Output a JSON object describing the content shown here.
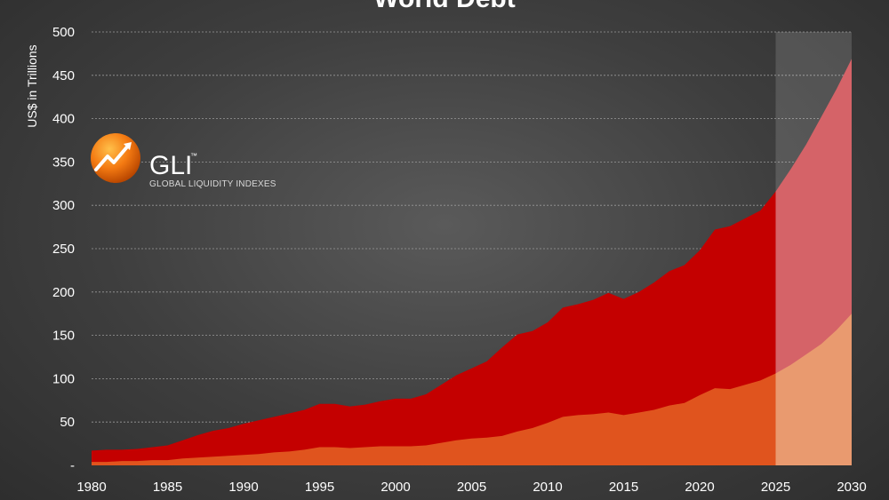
{
  "chart_data": {
    "type": "area",
    "title": "World Debt",
    "ylabel": "US$ in Trillions",
    "xlabel": "",
    "xlim": [
      1980,
      2030
    ],
    "ylim": [
      0,
      500
    ],
    "x_ticks": [
      "1980",
      "1985",
      "1990",
      "1995",
      "2000",
      "2005",
      "2010",
      "2015",
      "2020",
      "2025",
      "2030"
    ],
    "y_ticks": [
      "-",
      "50",
      "100",
      "150",
      "200",
      "250",
      "300",
      "350",
      "400",
      "450",
      "500"
    ],
    "grid": true,
    "forecast_start": 2025,
    "colors": {
      "total": "#c40000",
      "lower": "#e0541e",
      "forecast_total": "#cf4a50",
      "forecast_lower": "#e68a58",
      "forecast_shade": "#ffffff"
    },
    "series": [
      {
        "key": "total",
        "x": [
          1980,
          1981,
          1982,
          1983,
          1984,
          1985,
          1986,
          1987,
          1988,
          1989,
          1990,
          1991,
          1992,
          1993,
          1994,
          1995,
          1996,
          1997,
          1998,
          1999,
          2000,
          2001,
          2002,
          2003,
          2004,
          2005,
          2006,
          2007,
          2008,
          2009,
          2010,
          2011,
          2012,
          2013,
          2014,
          2015,
          2016,
          2017,
          2018,
          2019,
          2020,
          2021,
          2022,
          2023,
          2024,
          2025,
          2026,
          2027,
          2028,
          2029,
          2030
        ],
        "values": [
          17,
          18,
          18,
          19,
          21,
          23,
          29,
          35,
          40,
          43,
          48,
          52,
          56,
          60,
          64,
          71,
          71,
          68,
          70,
          74,
          77,
          77,
          82,
          93,
          104,
          112,
          120,
          136,
          151,
          155,
          165,
          182,
          186,
          191,
          199,
          192,
          200,
          211,
          224,
          231,
          248,
          272,
          276,
          285,
          294,
          316,
          342,
          370,
          402,
          434,
          469
        ]
      },
      {
        "key": "lower",
        "x": [
          1980,
          1981,
          1982,
          1983,
          1984,
          1985,
          1986,
          1987,
          1988,
          1989,
          1990,
          1991,
          1992,
          1993,
          1994,
          1995,
          1996,
          1997,
          1998,
          1999,
          2000,
          2001,
          2002,
          2003,
          2004,
          2005,
          2006,
          2007,
          2008,
          2009,
          2010,
          2011,
          2012,
          2013,
          2014,
          2015,
          2016,
          2017,
          2018,
          2019,
          2020,
          2021,
          2022,
          2023,
          2024,
          2025,
          2026,
          2027,
          2028,
          2029,
          2030
        ],
        "values": [
          4,
          4,
          5,
          5,
          6,
          6,
          8,
          9,
          10,
          11,
          12,
          13,
          15,
          16,
          18,
          21,
          21,
          20,
          21,
          22,
          22,
          22,
          23,
          26,
          29,
          31,
          32,
          34,
          39,
          43,
          49,
          56,
          58,
          59,
          61,
          58,
          61,
          64,
          69,
          72,
          81,
          89,
          88,
          93,
          98,
          106,
          116,
          128,
          140,
          156,
          175
        ]
      }
    ]
  },
  "logo": {
    "name": "GLI",
    "tm": "™",
    "subtitle": "GLOBAL LIQUIDITY INDEXES"
  }
}
